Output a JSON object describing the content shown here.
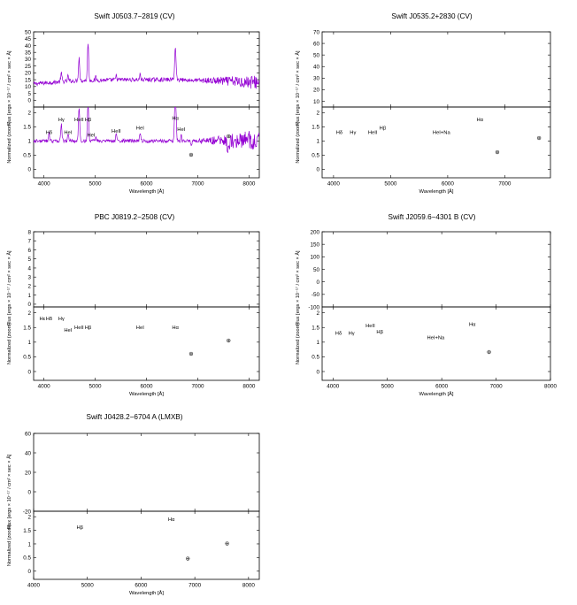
{
  "figure": {
    "common": {
      "flux_ylabel": "Flux [ergs × 10⁻¹⁷ / cm² × sec × Å]",
      "norm_ylabel": "Normalized (zoom)",
      "xlabel": "Wavelength [Å]",
      "telluric_symbol": "⊕",
      "line_color": "#9400D3"
    }
  },
  "chart_data": [
    {
      "type": "line",
      "title": "Swift J0503.7−2819 (CV)",
      "xlim": [
        3800,
        8200
      ],
      "xticks": [
        4000,
        5000,
        6000,
        7000,
        8000
      ],
      "flux": {
        "ylim": [
          -5,
          50
        ],
        "yticks": [
          0,
          5,
          10,
          15,
          20,
          25,
          30,
          35,
          40,
          45,
          50
        ],
        "continuum": [
          [
            3800,
            12
          ],
          [
            4500,
            14
          ],
          [
            5500,
            15
          ],
          [
            6500,
            15
          ],
          [
            7500,
            14
          ],
          [
            8200,
            13
          ]
        ],
        "noise": 1.5,
        "noise_red": 4,
        "features": [
          [
            4340,
            6,
            12
          ],
          [
            4471,
            4,
            10
          ],
          [
            4686,
            17,
            12
          ],
          [
            4861,
            28,
            12
          ],
          [
            5015,
            3,
            8
          ],
          [
            5411,
            3,
            10
          ],
          [
            5876,
            4,
            10
          ],
          [
            6563,
            23,
            14
          ],
          [
            6678,
            2,
            8
          ]
        ]
      },
      "norm": {
        "ylim": [
          -0.3,
          2.2
        ],
        "yticks": [
          0,
          0.5,
          1,
          1.5,
          2
        ],
        "noise": 0.06,
        "noise_red": 0.35,
        "features": [
          [
            4101,
            0.3,
            10
          ],
          [
            4340,
            0.6,
            12
          ],
          [
            4471,
            0.3,
            10
          ],
          [
            4686,
            1.2,
            12
          ],
          [
            4861,
            1.4,
            12
          ],
          [
            5015,
            0.2,
            8
          ],
          [
            5411,
            0.25,
            10
          ],
          [
            5876,
            0.3,
            10
          ],
          [
            6563,
            1.9,
            14
          ],
          [
            6678,
            0.2,
            8
          ],
          [
            6870,
            -0.15,
            12
          ],
          [
            7600,
            -0.35,
            20
          ]
        ]
      },
      "line_labels": [
        {
          "text": "Hδ",
          "wl": 4101,
          "y": 1.25
        },
        {
          "text": "Hγ",
          "wl": 4340,
          "y": 1.7
        },
        {
          "text": "HeI",
          "wl": 4471,
          "y": 1.25
        },
        {
          "text": "HeII",
          "wl": 4686,
          "y": 1.7
        },
        {
          "text": "Hβ",
          "wl": 4861,
          "y": 1.7
        },
        {
          "text": "HeI",
          "wl": 4921,
          "y": 1.15
        },
        {
          "text": "HeII",
          "wl": 5411,
          "y": 1.3
        },
        {
          "text": "HeI",
          "wl": 5876,
          "y": 1.4
        },
        {
          "text": "Hα",
          "wl": 6563,
          "y": 1.75
        },
        {
          "text": "HeI",
          "wl": 6678,
          "y": 1.35
        }
      ],
      "telluric": [
        {
          "wl": 6870,
          "y": 0.45
        },
        {
          "wl": 7600,
          "y": 1.1
        }
      ]
    },
    {
      "type": "line",
      "title": "Swift J0535.2+2830 (CV)",
      "xlim": [
        3800,
        7800
      ],
      "xticks": [
        4000,
        5000,
        6000,
        7000
      ],
      "flux": {
        "ylim": [
          5,
          70
        ],
        "yticks": [
          10,
          20,
          30,
          40,
          50,
          60,
          70
        ],
        "continuum": [
          [
            3800,
            37
          ],
          [
            4500,
            34
          ],
          [
            5500,
            36
          ],
          [
            6500,
            34
          ],
          [
            7200,
            31
          ],
          [
            7800,
            30
          ]
        ],
        "noise": 2.5,
        "noise_red": 2,
        "features": [
          [
            4340,
            5,
            12
          ],
          [
            4686,
            4,
            12
          ],
          [
            4861,
            8,
            12
          ],
          [
            5890,
            2,
            10
          ],
          [
            6563,
            33,
            12
          ],
          [
            7600,
            -18,
            25
          ]
        ]
      },
      "norm": {
        "ylim": [
          -0.3,
          2.2
        ],
        "yticks": [
          0,
          0.5,
          1,
          1.5,
          2
        ],
        "noise": 0.05,
        "noise_red": 0.06,
        "features": [
          [
            4340,
            0.15,
            12
          ],
          [
            4686,
            0.2,
            12
          ],
          [
            4861,
            0.3,
            12
          ],
          [
            5890,
            0.08,
            10
          ],
          [
            6563,
            0.85,
            12
          ],
          [
            6870,
            -0.1,
            10
          ],
          [
            7600,
            -0.55,
            25
          ]
        ]
      },
      "line_labels": [
        {
          "text": "Hδ",
          "wl": 4101,
          "y": 1.25
        },
        {
          "text": "Hγ",
          "wl": 4340,
          "y": 1.25
        },
        {
          "text": "HeII",
          "wl": 4686,
          "y": 1.25
        },
        {
          "text": "Hβ",
          "wl": 4861,
          "y": 1.4
        },
        {
          "text": "HeI+Na",
          "wl": 5890,
          "y": 1.25
        },
        {
          "text": "Hα",
          "wl": 6563,
          "y": 1.7
        }
      ],
      "telluric": [
        {
          "wl": 6870,
          "y": 0.55
        },
        {
          "wl": 7600,
          "y": 1.05
        }
      ]
    },
    {
      "type": "line",
      "title": "PBC J0819.2−2508 (CV)",
      "xlim": [
        3800,
        8200
      ],
      "xticks": [
        4000,
        5000,
        6000,
        7000,
        8000
      ],
      "flux": {
        "ylim": [
          -0.3,
          8
        ],
        "yticks": [
          0,
          1,
          2,
          3,
          4,
          5,
          6,
          7,
          8
        ],
        "continuum": [
          [
            3800,
            4
          ],
          [
            4500,
            3
          ],
          [
            5500,
            2
          ],
          [
            6500,
            1.4
          ],
          [
            7500,
            1
          ],
          [
            8200,
            0.8
          ]
        ],
        "noise": 0.5,
        "noise_red": 0.5,
        "features": [
          [
            3970,
            2,
            10
          ],
          [
            4101,
            2.5,
            10
          ],
          [
            4340,
            3,
            12
          ],
          [
            4471,
            1,
            10
          ],
          [
            4686,
            1.5,
            12
          ],
          [
            4861,
            4.5,
            14
          ],
          [
            5876,
            0.8,
            10
          ],
          [
            6563,
            3,
            14
          ]
        ]
      },
      "norm": {
        "ylim": [
          -0.3,
          2.2
        ],
        "yticks": [
          0,
          0.5,
          1,
          1.5,
          2
        ],
        "noise": 0.15,
        "noise_red": 0.3,
        "features": [
          [
            3970,
            0.6,
            10
          ],
          [
            4101,
            0.7,
            10
          ],
          [
            4340,
            0.8,
            12
          ],
          [
            4471,
            0.3,
            10
          ],
          [
            4686,
            0.4,
            12
          ],
          [
            4861,
            1.2,
            14
          ],
          [
            5876,
            0.4,
            10
          ],
          [
            6563,
            1.3,
            14
          ]
        ]
      },
      "line_labels": [
        {
          "text": "Hε",
          "wl": 3970,
          "y": 1.75
        },
        {
          "text": "Hδ",
          "wl": 4101,
          "y": 1.75
        },
        {
          "text": "Hγ",
          "wl": 4340,
          "y": 1.75
        },
        {
          "text": "HeI",
          "wl": 4471,
          "y": 1.35
        },
        {
          "text": "HeII",
          "wl": 4686,
          "y": 1.45
        },
        {
          "text": "Hβ",
          "wl": 4861,
          "y": 1.45
        },
        {
          "text": "HeI",
          "wl": 5876,
          "y": 1.45
        },
        {
          "text": "Hα",
          "wl": 6563,
          "y": 1.45
        }
      ],
      "telluric": [
        {
          "wl": 6870,
          "y": 0.55
        },
        {
          "wl": 7600,
          "y": 1.0
        }
      ]
    },
    {
      "type": "line",
      "title": "Swift J2059.6−4301 B (CV)",
      "xlim": [
        3800,
        8000
      ],
      "xticks": [
        4000,
        5000,
        6000,
        7000,
        8000
      ],
      "flux": {
        "ylim": [
          -100,
          200
        ],
        "yticks": [
          -100,
          -50,
          0,
          50,
          100,
          150,
          200
        ],
        "continuum": [
          [
            3800,
            40
          ],
          [
            4500,
            60
          ],
          [
            5500,
            80
          ],
          [
            6500,
            95
          ],
          [
            7300,
            110
          ],
          [
            7800,
            140
          ],
          [
            8000,
            120
          ]
        ],
        "noise": 4,
        "noise_red": 15,
        "features": [
          [
            6563,
            20,
            12
          ],
          [
            3880,
            -50,
            40
          ],
          [
            7900,
            50,
            40
          ]
        ]
      },
      "norm": {
        "ylim": [
          -0.3,
          2.2
        ],
        "yticks": [
          0,
          0.5,
          1,
          1.5,
          2
        ],
        "noise": 0.04,
        "noise_red": 0.18,
        "features": [
          [
            4101,
            0.1,
            10
          ],
          [
            4340,
            0.1,
            12
          ],
          [
            4686,
            0.25,
            12
          ],
          [
            4861,
            0.2,
            12
          ],
          [
            5890,
            0.05,
            10
          ],
          [
            6563,
            0.3,
            12
          ],
          [
            3870,
            -0.45,
            30
          ]
        ]
      },
      "line_labels": [
        {
          "text": "Hδ",
          "wl": 4101,
          "y": 1.25
        },
        {
          "text": "Hγ",
          "wl": 4340,
          "y": 1.25
        },
        {
          "text": "HeII",
          "wl": 4686,
          "y": 1.5
        },
        {
          "text": "Hβ",
          "wl": 4861,
          "y": 1.3
        },
        {
          "text": "HeI+Na",
          "wl": 5890,
          "y": 1.1
        },
        {
          "text": "Hα",
          "wl": 6563,
          "y": 1.55
        }
      ],
      "telluric": [
        {
          "wl": 6870,
          "y": 0.6
        }
      ]
    },
    {
      "type": "line",
      "title": "Swift J0428.2−6704 A (LMXB)",
      "xlim": [
        4000,
        8200
      ],
      "xticks": [
        4000,
        5000,
        6000,
        7000,
        8000
      ],
      "flux": {
        "ylim": [
          -20,
          60
        ],
        "yticks": [
          -20,
          0,
          20,
          40,
          60
        ],
        "continuum": [
          [
            4000,
            2
          ],
          [
            4800,
            7
          ],
          [
            5500,
            13
          ],
          [
            6200,
            23
          ],
          [
            6800,
            22
          ],
          [
            7500,
            21
          ],
          [
            8200,
            19
          ]
        ],
        "noise": 1.2,
        "noise_red": 1.5,
        "features": [
          [
            6563,
            20,
            14
          ],
          [
            6870,
            -3,
            12
          ],
          [
            7600,
            -10,
            25
          ]
        ]
      },
      "norm": {
        "ylim": [
          -0.3,
          2.2
        ],
        "yticks": [
          0,
          0.5,
          1,
          1.5,
          2
        ],
        "noise": 0.05,
        "noise_red": 0.05,
        "features": [
          [
            4861,
            0.3,
            15
          ],
          [
            6563,
            0.65,
            14
          ],
          [
            6870,
            -0.2,
            12
          ],
          [
            7600,
            -0.3,
            25
          ]
        ]
      },
      "blue_noise": {
        "until": 4700,
        "amp": 1.4
      },
      "line_labels": [
        {
          "text": "Hβ",
          "wl": 4861,
          "y": 1.55
        },
        {
          "text": "Hα",
          "wl": 6563,
          "y": 1.85
        }
      ],
      "telluric": [
        {
          "wl": 6870,
          "y": 0.4
        },
        {
          "wl": 7600,
          "y": 0.95
        }
      ]
    }
  ]
}
